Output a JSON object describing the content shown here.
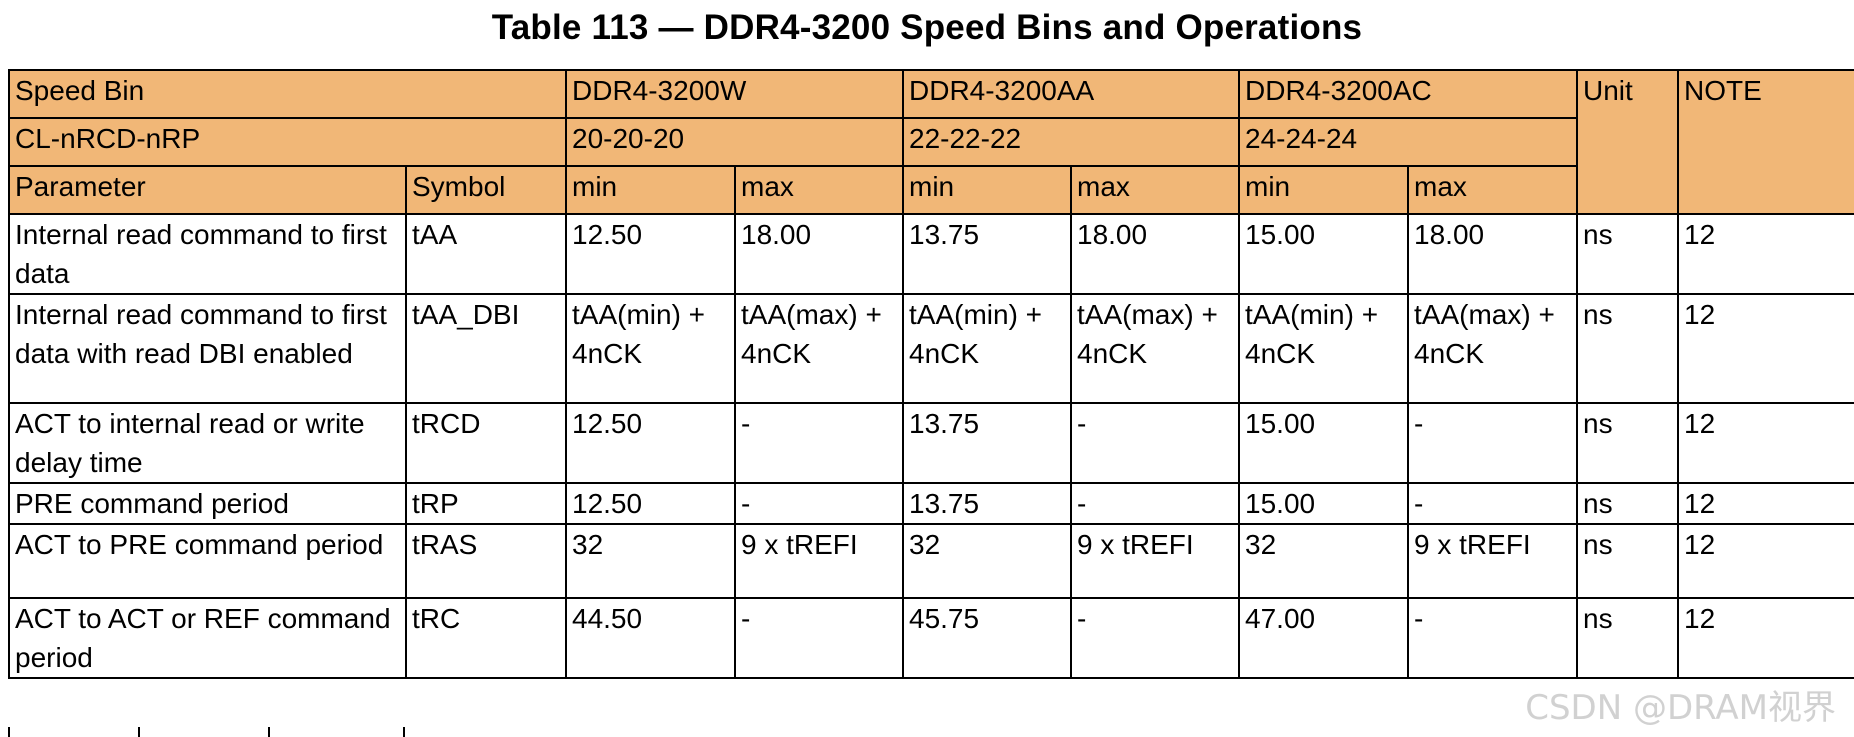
{
  "title": "Table 113 — DDR4-3200 Speed Bins and Operations",
  "header": {
    "speed_bin_label": "Speed Bin",
    "bins": [
      "DDR4-3200W",
      "DDR4-3200AA",
      "DDR4-3200AC"
    ],
    "unit_label": "Unit",
    "note_label": "NOTE",
    "cl_label": "CL-nRCD-nRP",
    "cl_values": [
      "20-20-20",
      "22-22-22",
      "24-24-24"
    ],
    "parameter_label": "Parameter",
    "symbol_label": "Symbol",
    "min_label": "min",
    "max_label": "max"
  },
  "rows": [
    {
      "parameter": "Internal read command to first data",
      "symbol": "tAA",
      "w_min": "12.50",
      "w_max": "18.00",
      "aa_min": "13.75",
      "aa_max": "18.00",
      "ac_min": "15.00",
      "ac_max": "18.00",
      "unit": "ns",
      "note": "12"
    },
    {
      "parameter": "Internal read command to first data with read DBI enabled",
      "symbol": "tAA_DBI",
      "w_min": "tAA(min)\n+ 4nCK",
      "w_max": "tAA(max)\n+ 4nCK",
      "aa_min": "tAA(min)\n+ 4nCK",
      "aa_max": "tAA(max)\n+ 4nCK",
      "ac_min": "tAA(min)\n+ 4nCK",
      "ac_max": "tAA(max)\n+ 4nCK",
      "unit": "ns",
      "note": "12"
    },
    {
      "parameter": "ACT to internal read or write delay time",
      "symbol": "tRCD",
      "w_min": "12.50",
      "w_max": "-",
      "aa_min": "13.75",
      "aa_max": "-",
      "ac_min": "15.00",
      "ac_max": "-",
      "unit": "ns",
      "note": "12"
    },
    {
      "parameter": "PRE command period",
      "symbol": "tRP",
      "w_min": "12.50",
      "w_max": "-",
      "aa_min": "13.75",
      "aa_max": "-",
      "ac_min": "15.00",
      "ac_max": "-",
      "unit": "ns",
      "note": "12"
    },
    {
      "parameter": "ACT to PRE command period",
      "symbol": "tRAS",
      "w_min": "32",
      "w_max": "9 x tREFI",
      "aa_min": "32",
      "aa_max": "9 x tREFI",
      "ac_min": "32",
      "ac_max": "9 x tREFI",
      "unit": "ns",
      "note": "12"
    },
    {
      "parameter": "ACT to ACT or REF command period",
      "symbol": "tRC",
      "w_min": "44.50",
      "w_max": "-",
      "aa_min": "45.75",
      "aa_max": "-",
      "ac_min": "47.00",
      "ac_max": "-",
      "unit": "ns",
      "note": "12"
    }
  ],
  "watermark": "CSDN @DRAM视界"
}
